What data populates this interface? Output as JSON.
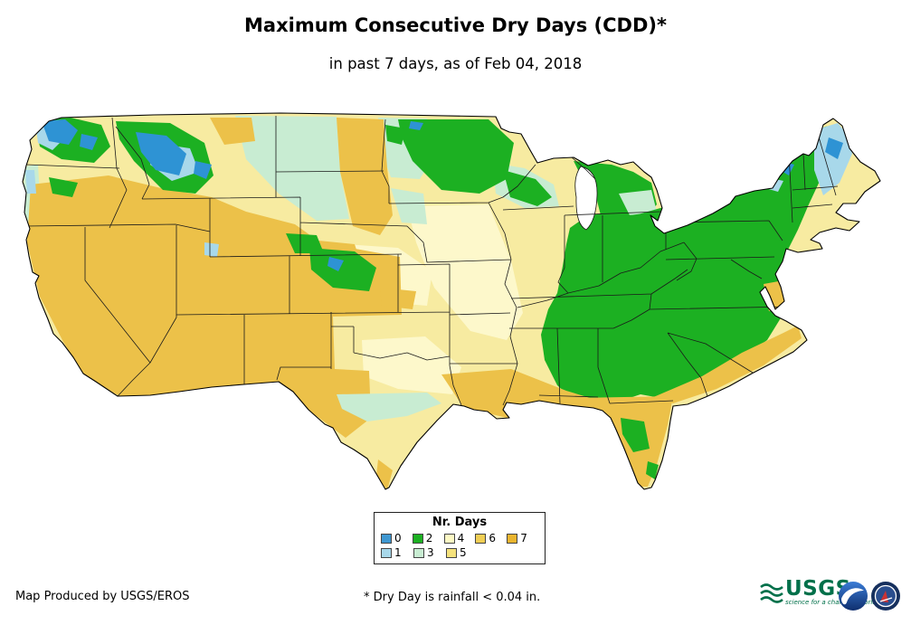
{
  "header": {
    "title": "Maximum Consecutive Dry Days (CDD)*",
    "subtitle": "in past 7 days, as of Feb 04, 2018"
  },
  "legend": {
    "title": "Nr. Days",
    "rows": [
      [
        {
          "label": "0",
          "color": "#3E97D1"
        },
        {
          "label": "2",
          "color": "#1CB022"
        },
        {
          "label": "4",
          "color": "#FDF9C4"
        },
        {
          "label": "6",
          "color": "#F0CE54"
        },
        {
          "label": "7",
          "color": "#E9B42E"
        }
      ],
      [
        {
          "label": "1",
          "color": "#A8D8EA"
        },
        {
          "label": "3",
          "color": "#C8ECD2"
        },
        {
          "label": "5",
          "color": "#F5E27C"
        }
      ]
    ]
  },
  "footer": {
    "credit": "Map Produced by USGS/EROS",
    "note": "* Dry Day is rainfall < 0.04 in."
  },
  "logos": {
    "usgs": {
      "name": "USGS",
      "tagline": "science for a changing world"
    }
  }
}
